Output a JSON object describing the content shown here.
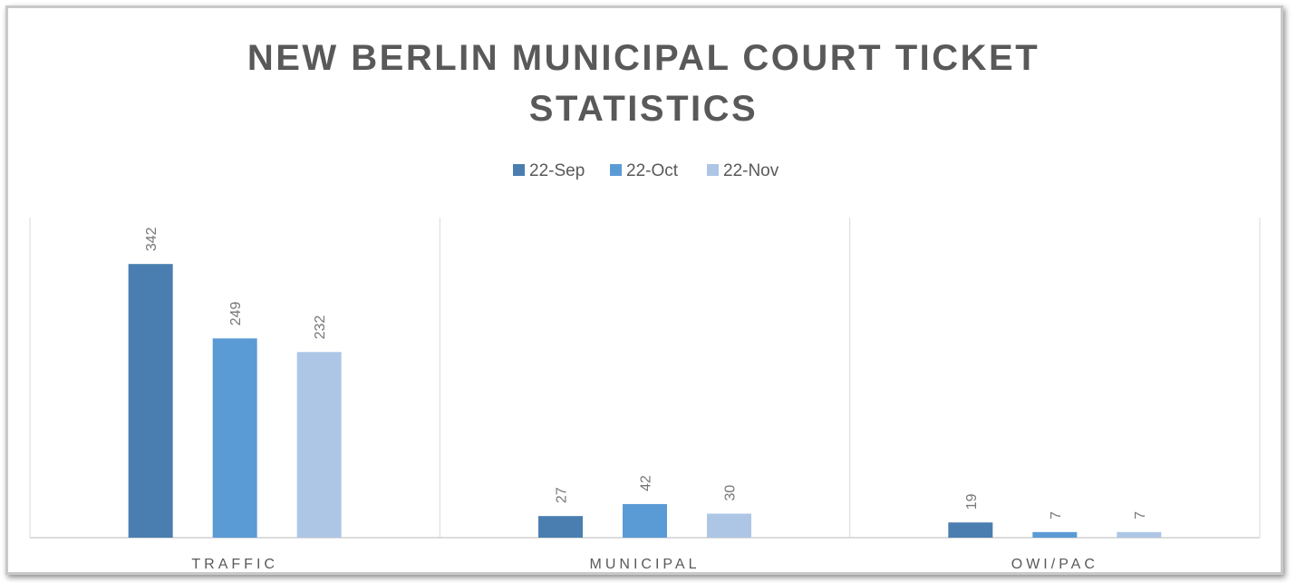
{
  "chart_data": {
    "type": "bar",
    "title": "NEW BERLIN MUNICIPAL COURT TICKET STATISTICS",
    "categories": [
      "TRAFFIC",
      "MUNICIPAL",
      "OWI/PAC"
    ],
    "series": [
      {
        "name": "22-Sep",
        "color": "#4a7eb0",
        "values": [
          342,
          27,
          19
        ]
      },
      {
        "name": "22-Oct",
        "color": "#5b9bd5",
        "values": [
          249,
          42,
          7
        ]
      },
      {
        "name": "22-Nov",
        "color": "#adc6e5",
        "values": [
          232,
          30,
          7
        ]
      }
    ],
    "ylim": [
      0,
      400
    ],
    "legend": "top"
  }
}
